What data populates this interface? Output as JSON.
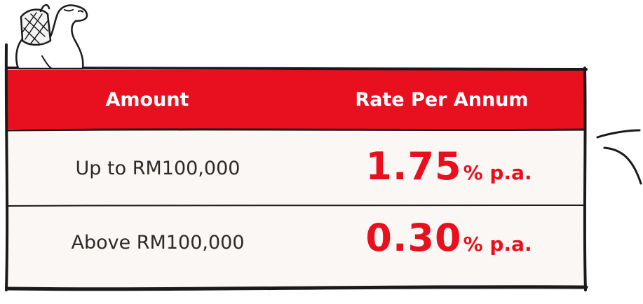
{
  "table": {
    "headers": [
      "Amount",
      "Rate Per Annum"
    ],
    "rows": [
      {
        "amount": "Up to RM100,000",
        "rate": "1.75",
        "suffix": "% p.a."
      },
      {
        "amount": "Above RM100,000",
        "rate": "0.30",
        "suffix": "% p.a."
      }
    ]
  },
  "colors": {
    "accent": "#e8101e",
    "background": "#fbf7f4",
    "ink": "#1a1a1a"
  },
  "decorations": {
    "mascot": "camel-icon",
    "motion": "motion-lines-icon"
  }
}
